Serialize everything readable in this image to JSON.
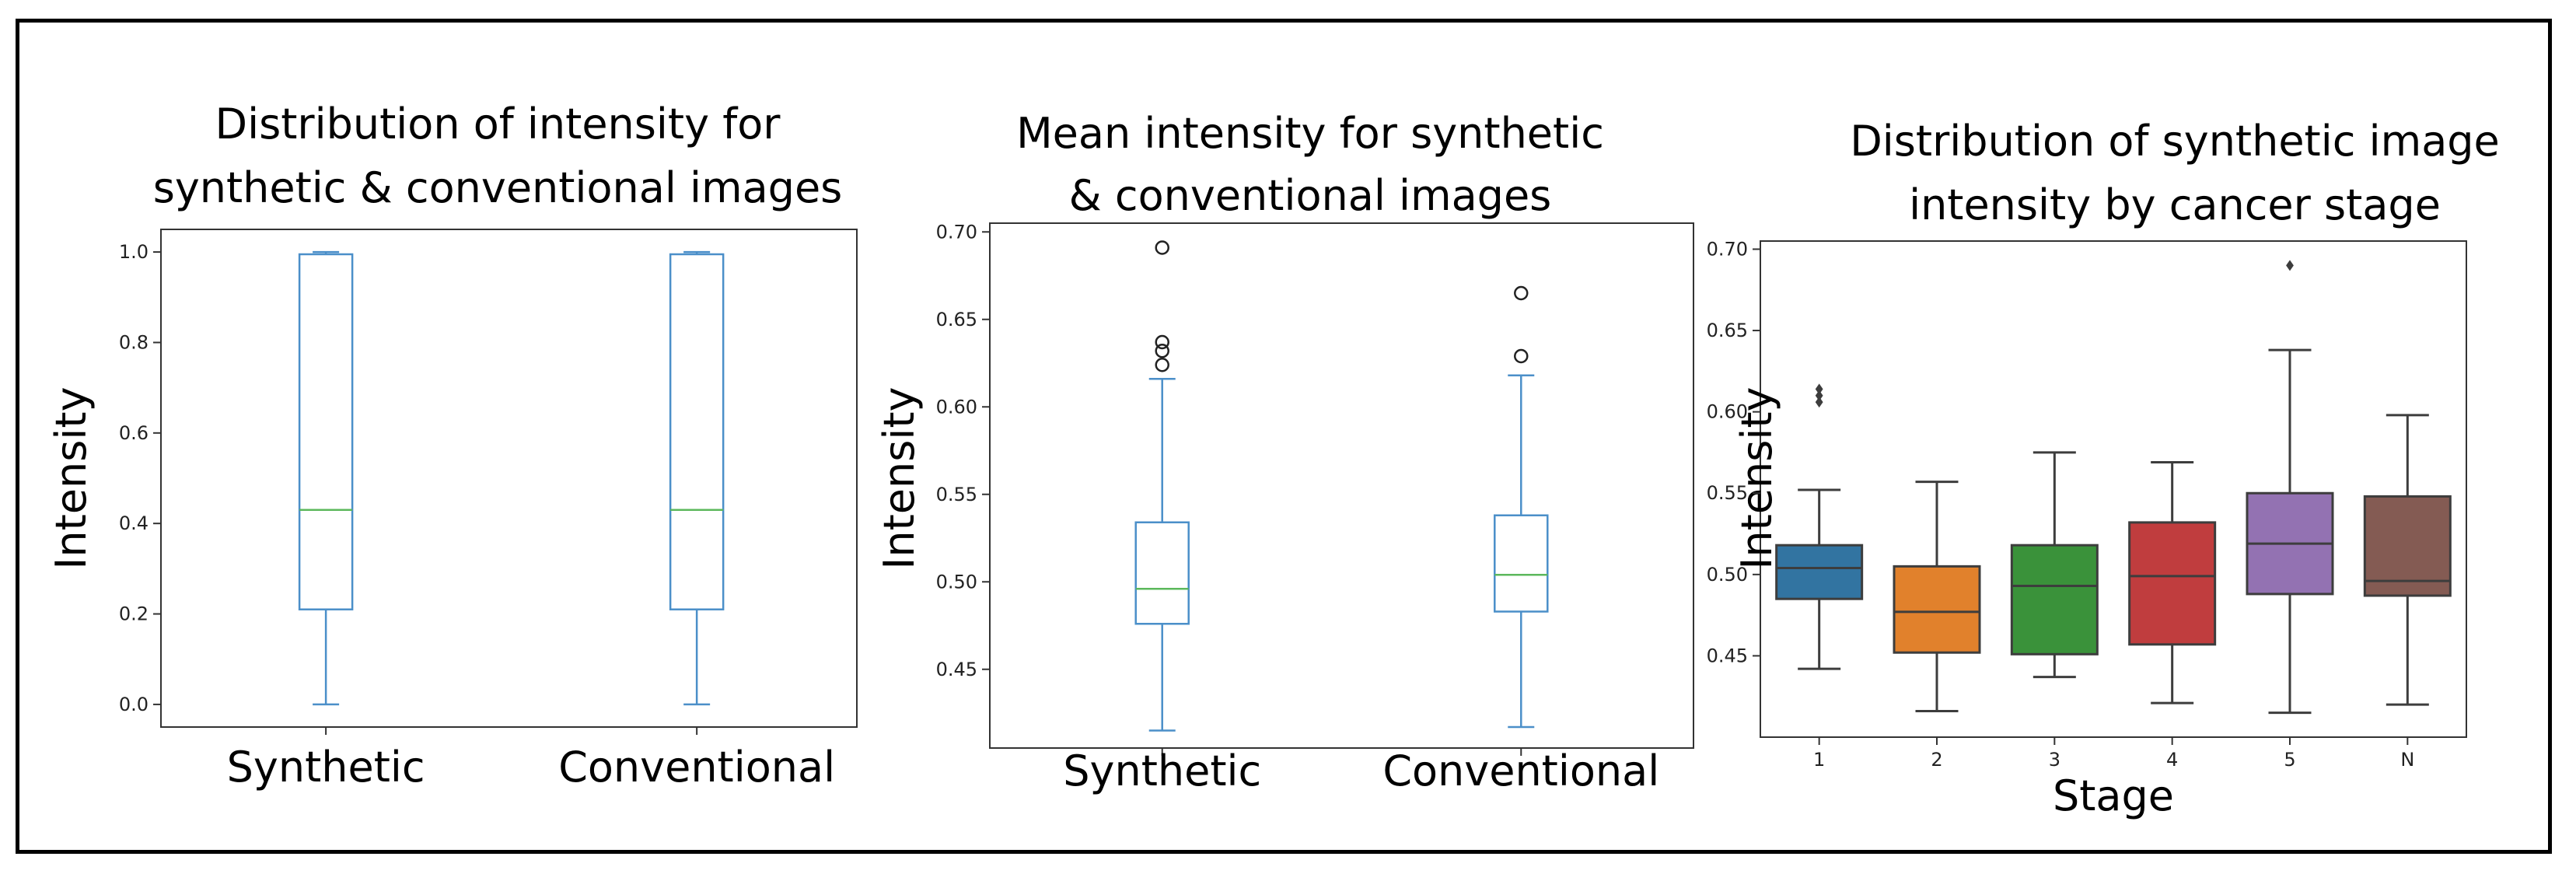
{
  "chart_data": [
    {
      "type": "box",
      "title_lines": [
        "Distribution of intensity for",
        "synthetic & conventional images"
      ],
      "xlabel": "",
      "ylabel": "Intensity",
      "categories": [
        "Synthetic",
        "Conventional"
      ],
      "ylim": [
        -0.05,
        1.05
      ],
      "yticks": [
        0.0,
        0.2,
        0.4,
        0.6,
        0.8,
        1.0
      ],
      "ytick_labels": [
        "0.0",
        "0.2",
        "0.4",
        "0.6",
        "0.8",
        "1.0"
      ],
      "box_color": "#4b8fc9",
      "median_color": "#5cb85c",
      "boxes": [
        {
          "whisker_low": 0.0,
          "q1": 0.21,
          "median": 0.43,
          "q3": 0.995,
          "whisker_high": 1.0,
          "outliers": []
        },
        {
          "whisker_low": 0.0,
          "q1": 0.21,
          "median": 0.43,
          "q3": 0.995,
          "whisker_high": 1.0,
          "outliers": []
        }
      ]
    },
    {
      "type": "box",
      "title_lines": [
        "Mean intensity for synthetic",
        "& conventional images"
      ],
      "xlabel": "",
      "ylabel": "Intensity",
      "categories": [
        "Synthetic",
        "Conventional"
      ],
      "ylim": [
        0.405,
        0.705
      ],
      "yticks": [
        0.45,
        0.5,
        0.55,
        0.6,
        0.65,
        0.7
      ],
      "ytick_labels": [
        "0.45",
        "0.50",
        "0.55",
        "0.60",
        "0.65",
        "0.70"
      ],
      "box_color": "#4b8fc9",
      "median_color": "#5cb85c",
      "boxes": [
        {
          "whisker_low": 0.415,
          "q1": 0.476,
          "median": 0.496,
          "q3": 0.534,
          "whisker_high": 0.616,
          "outliers": [
            0.624,
            0.632,
            0.637,
            0.691
          ]
        },
        {
          "whisker_low": 0.417,
          "q1": 0.483,
          "median": 0.504,
          "q3": 0.538,
          "whisker_high": 0.618,
          "outliers": [
            0.629,
            0.665
          ]
        }
      ]
    },
    {
      "type": "box",
      "title_lines": [
        "Distribution of synthetic image",
        "intensity by cancer stage"
      ],
      "xlabel": "Stage",
      "ylabel": "Intensity",
      "categories": [
        "1",
        "2",
        "3",
        "4",
        "5",
        "N"
      ],
      "ylim": [
        0.4,
        0.705
      ],
      "yticks": [
        0.45,
        0.5,
        0.55,
        0.6,
        0.65,
        0.7
      ],
      "ytick_labels": [
        "0.45",
        "0.50",
        "0.55",
        "0.60",
        "0.65",
        "0.70"
      ],
      "colors": [
        "#3274a1",
        "#e1812c",
        "#3a923a",
        "#c03d3e",
        "#9372b2",
        "#845b53"
      ],
      "boxes": [
        {
          "whisker_low": 0.442,
          "q1": 0.485,
          "median": 0.504,
          "q3": 0.518,
          "whisker_high": 0.552,
          "outliers": [
            0.606,
            0.61,
            0.614
          ]
        },
        {
          "whisker_low": 0.416,
          "q1": 0.452,
          "median": 0.477,
          "q3": 0.505,
          "whisker_high": 0.557,
          "outliers": []
        },
        {
          "whisker_low": 0.437,
          "q1": 0.451,
          "median": 0.493,
          "q3": 0.518,
          "whisker_high": 0.575,
          "outliers": []
        },
        {
          "whisker_low": 0.421,
          "q1": 0.457,
          "median": 0.499,
          "q3": 0.532,
          "whisker_high": 0.569,
          "outliers": []
        },
        {
          "whisker_low": 0.415,
          "q1": 0.488,
          "median": 0.519,
          "q3": 0.55,
          "whisker_high": 0.638,
          "outliers": [
            0.69
          ]
        },
        {
          "whisker_low": 0.42,
          "q1": 0.487,
          "median": 0.496,
          "q3": 0.548,
          "whisker_high": 0.598,
          "outliers": []
        }
      ]
    }
  ]
}
